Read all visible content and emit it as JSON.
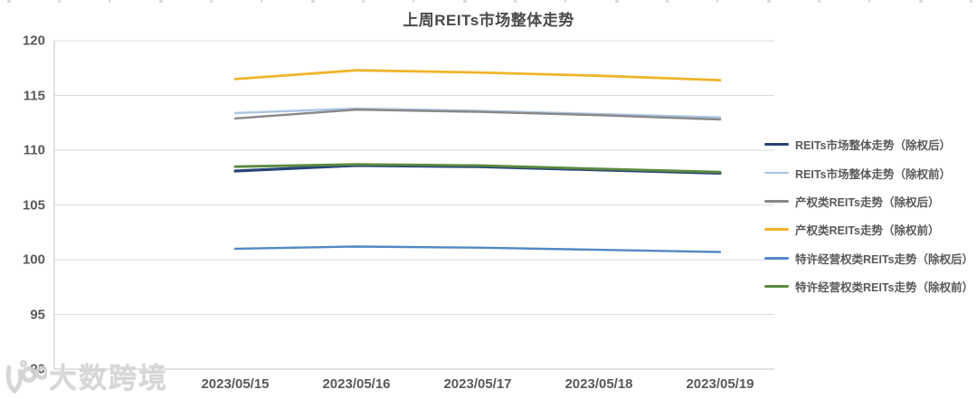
{
  "chart_data": {
    "type": "line",
    "title": "上周REITs市场整体走势",
    "categories": [
      "2023/05/15",
      "2023/05/16",
      "2023/05/17",
      "2023/05/18",
      "2023/05/19"
    ],
    "series": [
      {
        "name": "REITs市场整体走势（除权后）",
        "color": "#264478",
        "width": 3.2,
        "values": [
          108.1,
          108.6,
          108.5,
          108.2,
          107.9
        ]
      },
      {
        "name": "REITs市场整体走势（除权前）",
        "color": "#A9C4E4",
        "width": 2.4,
        "values": [
          113.4,
          113.8,
          113.6,
          113.3,
          113.0
        ]
      },
      {
        "name": "产权类REITs走势（除权后）",
        "color": "#888888",
        "width": 2.4,
        "values": [
          112.9,
          113.7,
          113.5,
          113.2,
          112.8
        ]
      },
      {
        "name": "产权类REITs走势（除权前）",
        "color": "#EFB42B",
        "width": 2.8,
        "values": [
          116.5,
          117.3,
          117.1,
          116.8,
          116.4
        ]
      },
      {
        "name": "特许经营权类REITs走势（除权后）",
        "color": "#5289C3",
        "width": 2.4,
        "values": [
          101.0,
          101.2,
          101.1,
          100.9,
          100.7
        ]
      },
      {
        "name": "特许经营权类REITs走势（除权前）",
        "color": "#5A8A3F",
        "width": 2.8,
        "values": [
          108.5,
          108.7,
          108.6,
          108.3,
          108.0
        ]
      }
    ],
    "y_axis": {
      "min": 90,
      "max": 120,
      "step": 5,
      "ticks": [
        120,
        115,
        110,
        105,
        100,
        95,
        90
      ]
    },
    "x_label_visible": true,
    "grid": true,
    "legend_position": "right",
    "colors": {
      "gridline": "#DBDBDB",
      "axis_line": "#C6C6C6",
      "tick_text": "#595959",
      "title_text": "#4a4a4a"
    }
  },
  "watermark": {
    "text": "大数跨境"
  }
}
